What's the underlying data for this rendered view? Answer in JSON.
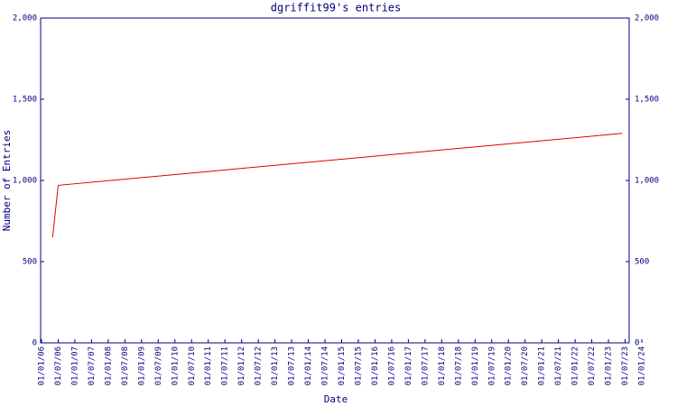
{
  "chart_data": {
    "type": "line",
    "title": "dgriffit99's entries",
    "xlabel": "Date",
    "ylabel": "Number of Entries",
    "x": [
      "01/05/06",
      "01/07/06",
      "01/06/23"
    ],
    "values": [
      650,
      970,
      1290
    ],
    "color": "#e00000",
    "xlim": [
      "01/01/06",
      "01/01/24"
    ],
    "xticks": [
      "01/01/06",
      "01/07/06",
      "01/01/07",
      "01/07/07",
      "01/01/08",
      "01/07/08",
      "01/01/09",
      "01/07/09",
      "01/01/10",
      "01/07/10",
      "01/01/11",
      "01/07/11",
      "01/01/12",
      "01/07/12",
      "01/01/13",
      "01/07/13",
      "01/01/14",
      "01/07/14",
      "01/01/15",
      "01/07/15",
      "01/01/16",
      "01/07/16",
      "01/01/17",
      "01/07/17",
      "01/01/18",
      "01/07/18",
      "01/01/19",
      "01/07/19",
      "01/01/20",
      "01/07/20",
      "01/01/21",
      "01/07/21",
      "01/01/22",
      "01/07/22",
      "01/01/23",
      "01/07/23",
      "01/01/24"
    ],
    "ylim": [
      0,
      2000
    ],
    "yticks": [
      0,
      500,
      {
        "value": 1000,
        "label": "1,000"
      },
      {
        "value": 1500,
        "label": "1,500"
      },
      {
        "value": 2000,
        "label": "2,000"
      }
    ],
    "grid": false
  }
}
